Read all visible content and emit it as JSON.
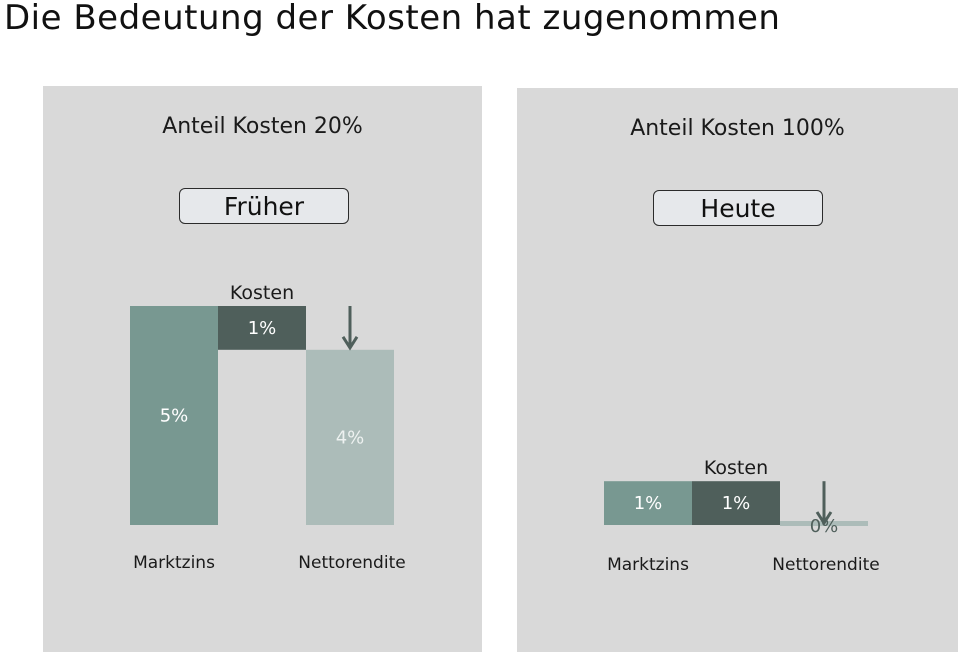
{
  "page": {
    "title": "Die Bedeutung der Kosten hat zugenommen"
  },
  "panels": [
    {
      "heading": "Anteil Kosten 20%",
      "era_label": "Früher"
    },
    {
      "heading": "Anteil Kosten 100%",
      "era_label": "Heute"
    }
  ],
  "colors": {
    "panel_bg": "#d9d9d9",
    "marktzins": "#789891",
    "kosten": "#4f5f5b",
    "nettorendite": "#acbcb9",
    "arrow": "#4f5f5b"
  },
  "chart_data": [
    {
      "type": "bar",
      "categories": [
        "Marktzins",
        "Kosten",
        "Nettorendite"
      ],
      "values": [
        5,
        1,
        4
      ],
      "data_labels": [
        "5%",
        "1%",
        "4%"
      ],
      "cost_caption": "Kosten",
      "unit": "%",
      "ylim": [
        0,
        5
      ],
      "grid": false
    },
    {
      "type": "bar",
      "categories": [
        "Marktzins",
        "Kosten",
        "Nettorendite"
      ],
      "values": [
        1,
        1,
        0
      ],
      "data_labels": [
        "1%",
        "1%",
        "0%"
      ],
      "cost_caption": "Kosten",
      "unit": "%",
      "ylim": [
        0,
        5
      ],
      "grid": false
    }
  ]
}
